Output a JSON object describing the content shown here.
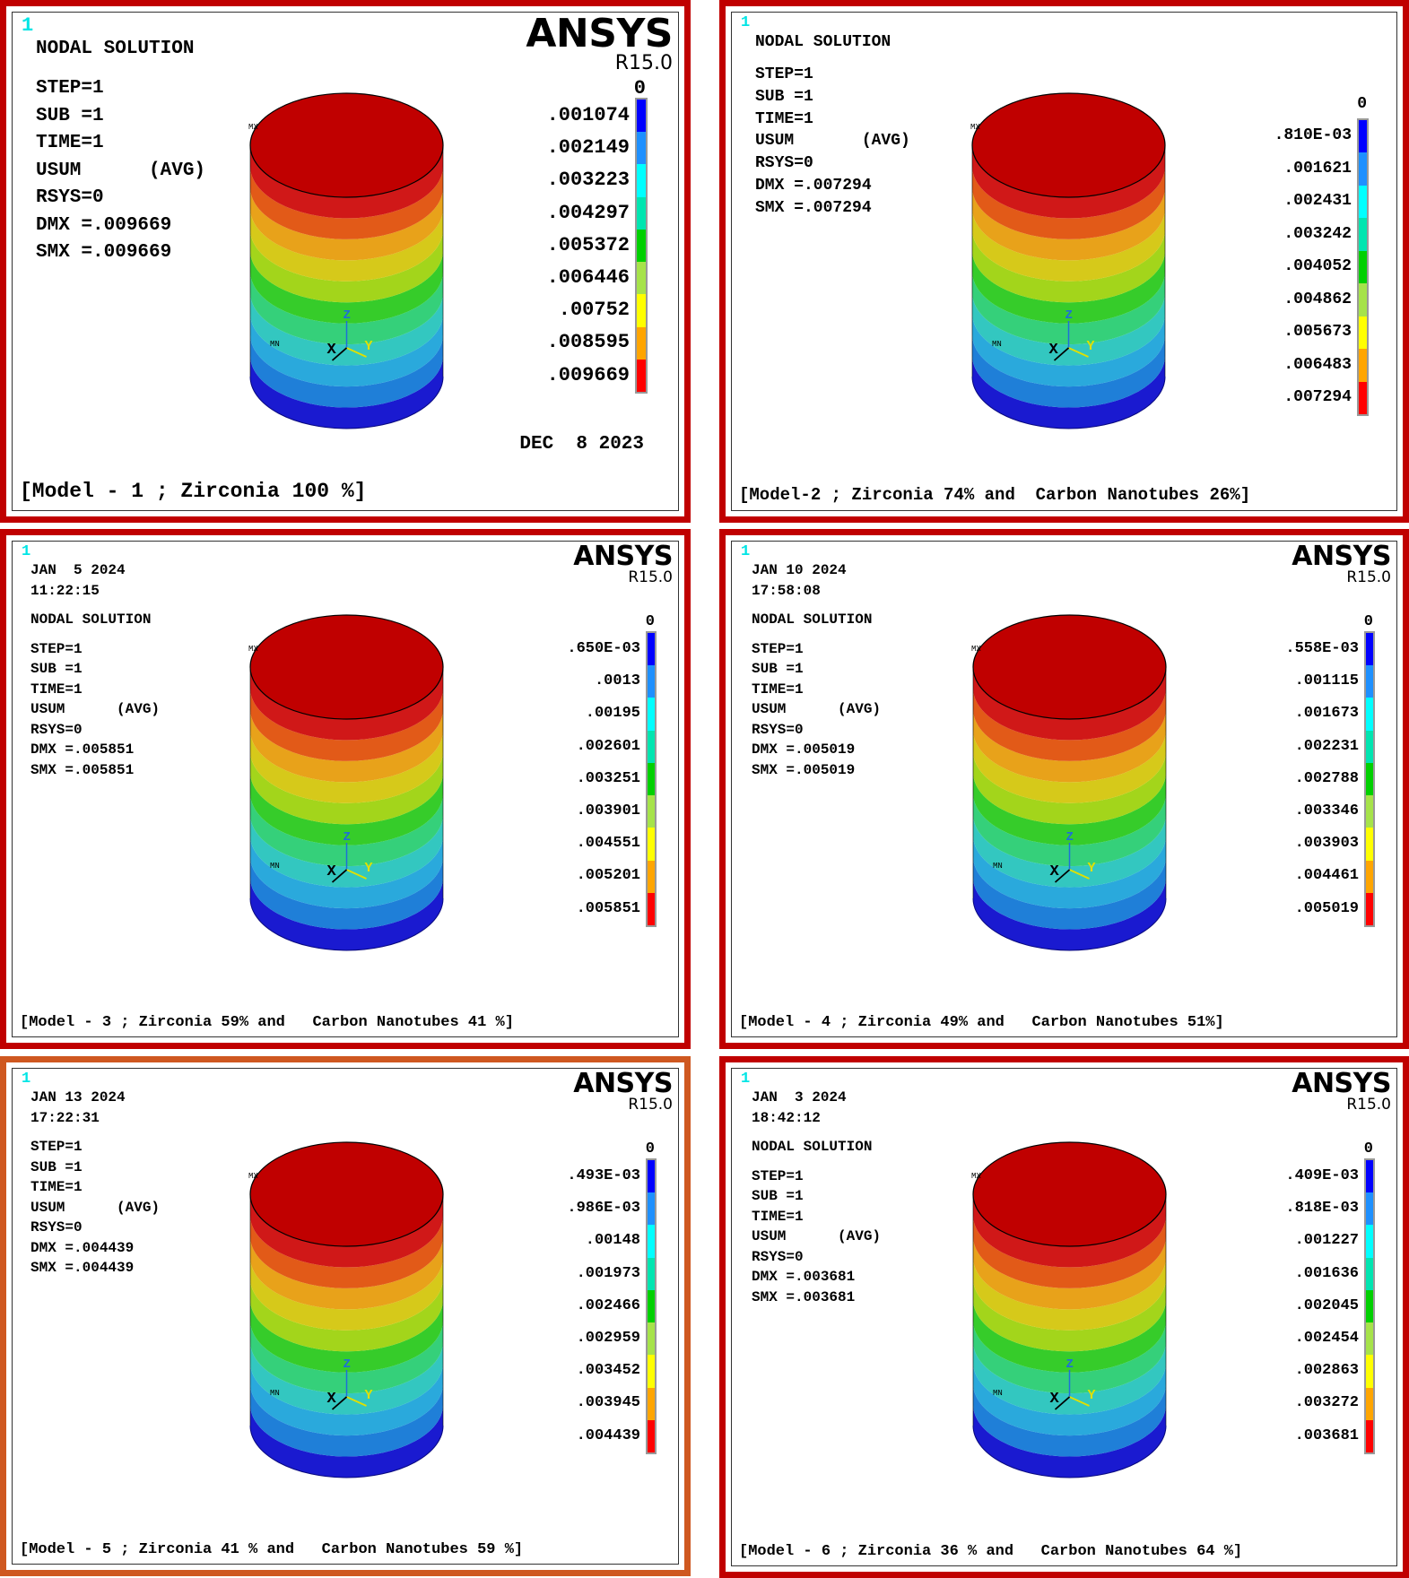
{
  "colors": {
    "frame_red": "#c00000",
    "frame_orange": "#cf5820",
    "contour": [
      "#0000ff",
      "#1e90ff",
      "#00ffff",
      "#00e5b0",
      "#00d000",
      "#a6e34a",
      "#ffff00",
      "#ffa500",
      "#ff0000"
    ],
    "cylinder_bands": [
      "#1a1ad0",
      "#1f7fd8",
      "#2aa9dc",
      "#33c7c0",
      "#35d07a",
      "#36cc2a",
      "#a3d51b",
      "#d6c91a",
      "#e8a21a",
      "#e25a18",
      "#d01818",
      "#c00000"
    ]
  },
  "common": {
    "brand": "ANSYS",
    "version": "R15.0",
    "window_number": "1",
    "legend_zero": "0",
    "axis_x": "X",
    "axis_y": "Y",
    "axis_z": "Z",
    "mx": "MX",
    "mn": "MN"
  },
  "panels": [
    {
      "id": "model-1",
      "info": [
        "NODAL SOLUTION",
        "",
        "STEP=1",
        "SUB =1",
        "TIME=1",
        "USUM      (AVG)",
        "RSYS=0",
        "DMX =.009669",
        "SMX =.009669"
      ],
      "legend_labels": [
        ".001074",
        ".002149",
        ".003223",
        ".004297",
        ".005372",
        ".006446",
        ".00752",
        ".008595",
        ".009669"
      ],
      "date_bottom": "DEC  8 2023",
      "caption": "[Model - 1 ; Zirconia 100 %]",
      "has_brand": true
    },
    {
      "id": "model-2",
      "info": [
        "NODAL SOLUTION",
        "",
        "STEP=1",
        "SUB =1",
        "TIME=1",
        "USUM       (AVG)",
        "RSYS=0",
        "DMX =.007294",
        "SMX =.007294"
      ],
      "legend_labels": [
        ".810E-03",
        ".001621",
        ".002431",
        ".003242",
        ".004052",
        ".004862",
        ".005673",
        ".006483",
        ".007294"
      ],
      "date_bottom": "",
      "caption": "[Model-2 ; Zirconia 74% and  Carbon Nanotubes 26%]",
      "has_brand": false
    },
    {
      "id": "model-3",
      "info": [
        "JAN  5 2024",
        "11:22:15",
        "",
        "NODAL SOLUTION",
        "",
        "STEP=1",
        "SUB =1",
        "TIME=1",
        "USUM      (AVG)",
        "RSYS=0",
        "DMX =.005851",
        "SMX =.005851"
      ],
      "legend_labels": [
        ".650E-03",
        ".0013",
        ".00195",
        ".002601",
        ".003251",
        ".003901",
        ".004551",
        ".005201",
        ".005851"
      ],
      "date_bottom": "",
      "caption": "[Model - 3 ; Zirconia 59% and   Carbon Nanotubes 41 %]",
      "has_brand": true
    },
    {
      "id": "model-4",
      "info": [
        "JAN 10 2024",
        "17:58:08",
        "",
        "NODAL SOLUTION",
        "",
        "STEP=1",
        "SUB =1",
        "TIME=1",
        "USUM      (AVG)",
        "RSYS=0",
        "DMX =.005019",
        "SMX =.005019"
      ],
      "legend_labels": [
        ".558E-03",
        ".001115",
        ".001673",
        ".002231",
        ".002788",
        ".003346",
        ".003903",
        ".004461",
        ".005019"
      ],
      "date_bottom": "",
      "caption": "[Model - 4 ; Zirconia 49% and   Carbon Nanotubes 51%]",
      "has_brand": true
    },
    {
      "id": "model-5",
      "info": [
        "JAN 13 2024",
        "17:22:31",
        "",
        "STEP=1",
        "SUB =1",
        "TIME=1",
        "USUM      (AVG)",
        "RSYS=0",
        "DMX =.004439",
        "SMX =.004439"
      ],
      "legend_labels": [
        ".493E-03",
        ".986E-03",
        ".00148",
        ".001973",
        ".002466",
        ".002959",
        ".003452",
        ".003945",
        ".004439"
      ],
      "date_bottom": "",
      "caption": "[Model - 5 ; Zirconia 41 % and   Carbon Nanotubes 59 %]",
      "has_brand": true
    },
    {
      "id": "model-6",
      "info": [
        "JAN  3 2024",
        "18:42:12",
        "",
        "NODAL SOLUTION",
        "",
        "STEP=1",
        "SUB =1",
        "TIME=1",
        "USUM      (AVG)",
        "RSYS=0",
        "DMX =.003681",
        "SMX =.003681"
      ],
      "legend_labels": [
        ".409E-03",
        ".818E-03",
        ".001227",
        ".001636",
        ".002045",
        ".002454",
        ".002863",
        ".003272",
        ".003681"
      ],
      "date_bottom": "",
      "caption": "[Model - 6 ; Zirconia 36 % and   Carbon Nanotubes 64 %]",
      "has_brand": true
    }
  ]
}
